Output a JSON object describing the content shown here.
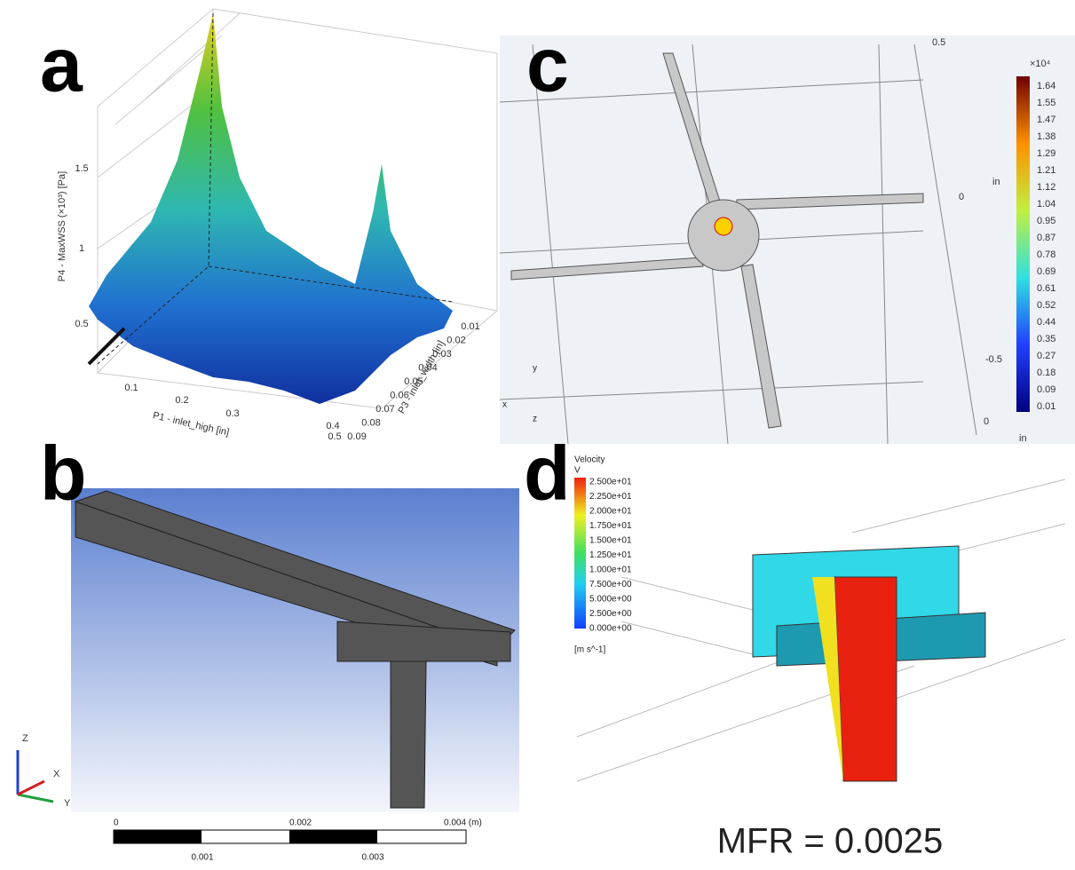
{
  "panel_a": {
    "label": "a",
    "z_axis": {
      "title": "P4 - MaxWSS (×10³) [Pa]",
      "ticks": [
        "0.5",
        "1",
        "1.5"
      ]
    },
    "x_axis": {
      "title": "P1 - inlet_high [in]",
      "ticks": [
        "0.1",
        "0.2",
        "0.3",
        "0.4",
        "0.5"
      ]
    },
    "y_axis": {
      "title": "P3 - inlet_width [in]",
      "ticks": [
        "0.01",
        "0.02",
        "0.03",
        "0.04",
        "0.05",
        "0.06",
        "0.07",
        "0.08",
        "0.09"
      ]
    }
  },
  "panel_b": {
    "label": "b",
    "triad": [
      "Z",
      "X",
      "Y"
    ],
    "scale_top": [
      "0",
      "0.002",
      "0.004 (m)"
    ],
    "scale_bottom": [
      "0.001",
      "0.003"
    ]
  },
  "panel_c": {
    "label": "c",
    "colorbar_unit": "×10⁴",
    "colorbar": [
      "1.64",
      "1.55",
      "1.47",
      "1.38",
      "1.29",
      "1.21",
      "1.12",
      "1.04",
      "0.95",
      "0.87",
      "0.78",
      "0.69",
      "0.61",
      "0.52",
      "0.44",
      "0.35",
      "0.27",
      "0.18",
      "0.09",
      "0.01"
    ],
    "axis_labels": [
      "0.5",
      "0",
      "-0.5",
      "0",
      "in",
      "in"
    ],
    "triad": [
      "y",
      "x",
      "z"
    ]
  },
  "panel_d": {
    "label": "d",
    "legend_title": "Velocity",
    "legend_var": "V",
    "colorbar": [
      "2.500e+01",
      "2.250e+01",
      "2.000e+01",
      "1.750e+01",
      "1.500e+01",
      "1.250e+01",
      "1.000e+01",
      "7.500e+00",
      "5.000e+00",
      "2.500e+00",
      "0.000e+00"
    ],
    "unit": "[m s^-1]",
    "caption": "MFR = 0.0025"
  }
}
